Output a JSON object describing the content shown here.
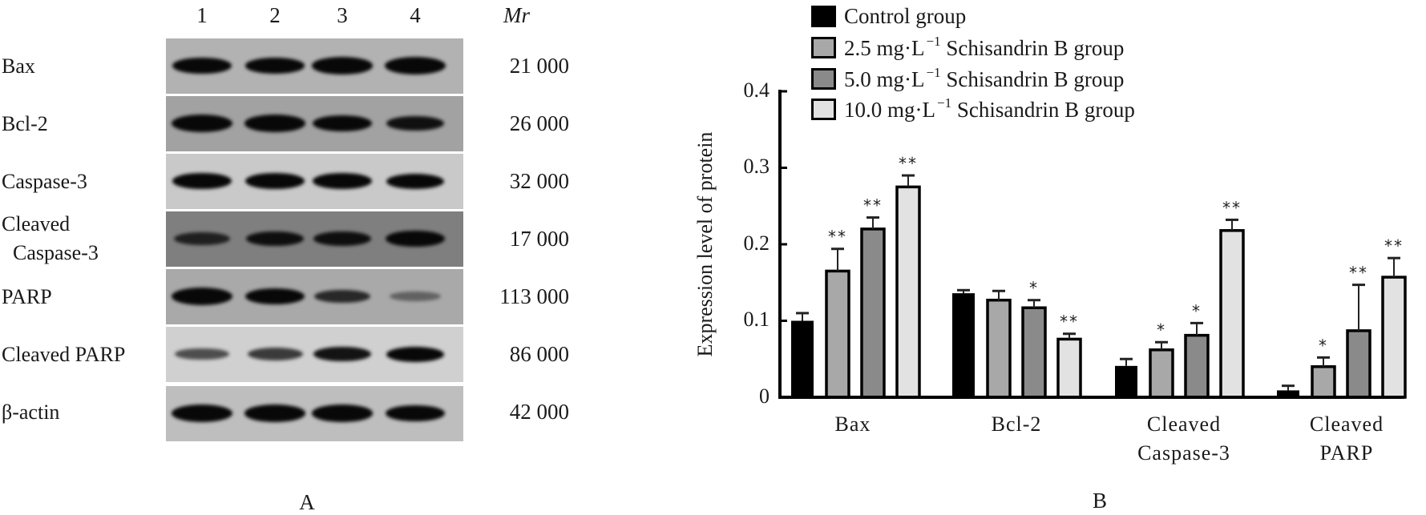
{
  "panel_a": {
    "panel_letter": "A",
    "lane_numbers": [
      "1",
      "2",
      "3",
      "4"
    ],
    "mr_header": "Mr",
    "rows": [
      {
        "label": "Bax",
        "mr": "21 000",
        "background": "#b2b2b2",
        "band_intensity": [
          0.9,
          0.8,
          0.95,
          1.0
        ]
      },
      {
        "label": "Bcl-2",
        "mr": "26 000",
        "background": "#a2a2a2",
        "band_intensity": [
          1.0,
          0.95,
          0.85,
          0.7
        ]
      },
      {
        "label": "Caspase-3",
        "mr": "32 000",
        "background": "#c9c9c9",
        "band_intensity": [
          0.9,
          0.9,
          0.85,
          0.75
        ]
      },
      {
        "label_line1": "Cleaved",
        "label_line2": "Caspase-3",
        "label": "Cleaved Caspase-3",
        "mr": "17 000",
        "background": "#7f7f7f",
        "band_intensity": [
          0.55,
          0.7,
          0.7,
          0.9
        ]
      },
      {
        "label": "PARP",
        "mr": "113 000",
        "background": "#a9a9a9",
        "band_intensity": [
          1.0,
          0.85,
          0.55,
          0.2
        ]
      },
      {
        "label": "Cleaved PARP",
        "mr": "86 000",
        "background": "#d0d0d0",
        "band_intensity": [
          0.4,
          0.5,
          0.7,
          0.75
        ]
      },
      {
        "label": "β-actin",
        "mr": "42 000",
        "background": "#bebebe",
        "band_intensity": [
          1.0,
          0.95,
          0.95,
          0.9
        ]
      }
    ]
  },
  "panel_b": {
    "panel_letter": "B",
    "legend": [
      {
        "prefix": "Control group",
        "sup": "",
        "suffix": "",
        "color": "#000000"
      },
      {
        "prefix": "2.5 mg·L",
        "sup": "−1",
        "suffix": " Schisandrin B group",
        "color": "#a8a8a8"
      },
      {
        "prefix": "5.0 mg·L",
        "sup": "−1",
        "suffix": " Schisandrin B group",
        "color": "#8a8a8a"
      },
      {
        "prefix": "10.0 mg·L",
        "sup": "−1",
        "suffix": " Schisandrin B group",
        "color": "#e2e2e2"
      }
    ]
  },
  "chart_data": {
    "type": "bar",
    "title": "",
    "xlabel": "",
    "ylabel": "Expression level of protein",
    "ylim": [
      0,
      0.4
    ],
    "yticks": [
      0,
      0.1,
      0.2,
      0.3,
      0.4
    ],
    "ytick_labels": [
      "0",
      "0.1",
      "0.2",
      "0.3",
      "0.4"
    ],
    "categories": [
      {
        "line1": "Bax",
        "line2": ""
      },
      {
        "line1": "Bcl-2",
        "line2": ""
      },
      {
        "line1": "Cleaved",
        "line2": "Caspase-3"
      },
      {
        "line1": "Cleaved",
        "line2": "PARP"
      }
    ],
    "legend_position": "top",
    "grid": false,
    "series": [
      {
        "name": "Control group",
        "color": "#000000",
        "values": [
          0.1,
          0.136,
          0.041,
          0.009
        ],
        "errors": [
          0.01,
          0.004,
          0.009,
          0.006
        ],
        "significance": [
          "",
          "",
          "",
          ""
        ]
      },
      {
        "name": "2.5 mg·L−1 Schisandrin B group",
        "color": "#a8a8a8",
        "values": [
          0.165,
          0.127,
          0.062,
          0.04
        ],
        "errors": [
          0.029,
          0.012,
          0.01,
          0.012
        ],
        "significance": [
          "**",
          "",
          "*",
          "*"
        ]
      },
      {
        "name": "5.0 mg·L−1 Schisandrin B group",
        "color": "#8a8a8a",
        "values": [
          0.22,
          0.117,
          0.081,
          0.087
        ],
        "errors": [
          0.015,
          0.01,
          0.016,
          0.06
        ],
        "significance": [
          "**",
          "*",
          "*",
          "**"
        ]
      },
      {
        "name": "10.0 mg·L−1 Schisandrin B group",
        "color": "#e2e2e2",
        "values": [
          0.275,
          0.076,
          0.218,
          0.157
        ],
        "errors": [
          0.015,
          0.007,
          0.014,
          0.025
        ],
        "significance": [
          "**",
          "**",
          "**",
          "**"
        ]
      }
    ]
  }
}
